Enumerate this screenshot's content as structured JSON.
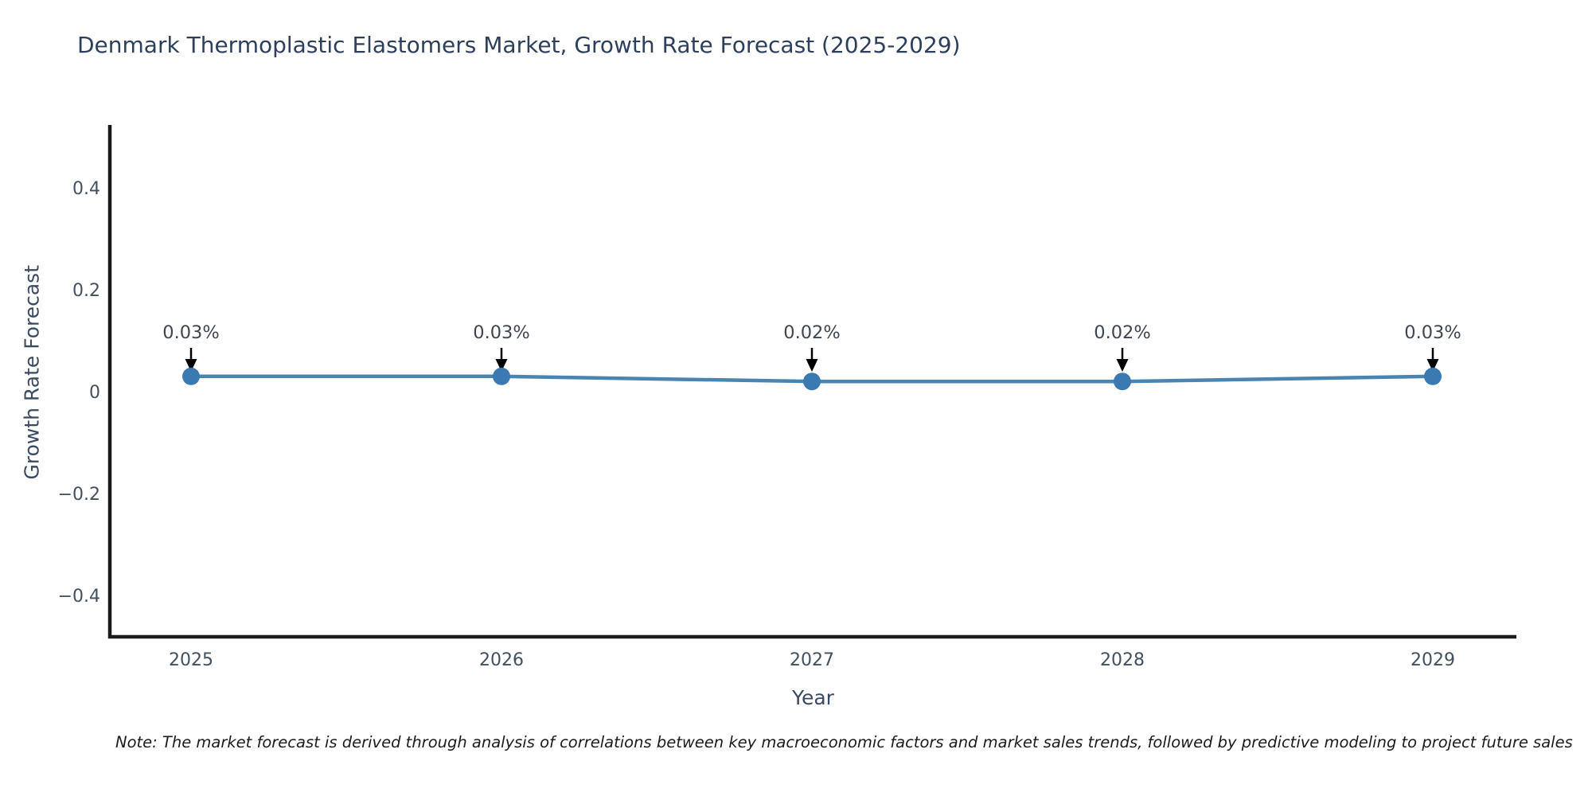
{
  "title": "Denmark Thermoplastic Elastomers Market, Growth Rate Forecast (2025-2029)",
  "footnote": "Note: The market forecast is derived through analysis of correlations between key macroeconomic factors and market sales trends, followed by predictive modeling to project future sales",
  "colors": {
    "background": "#ffffff",
    "title_text": "#2e3f5c",
    "axis_title_text": "#3b4a63",
    "tick_text": "#42505f",
    "spine": "#1a1a1a",
    "line": "#4a84b1",
    "marker": "#3a79b1",
    "annotation_text": "#3f4652",
    "annotation_arrow": "#000000"
  },
  "chart_data": {
    "type": "line",
    "title": "Denmark Thermoplastic Elastomers Market, Growth Rate Forecast (2025-2029)",
    "xlabel": "Year",
    "ylabel": "Growth Rate Forecast",
    "x": [
      2025,
      2026,
      2027,
      2028,
      2029
    ],
    "series": [
      {
        "name": "Growth Rate Forecast",
        "values": [
          0.03,
          0.03,
          0.02,
          0.02,
          0.03
        ],
        "point_labels": [
          "0.03%",
          "0.03%",
          "0.02%",
          "0.02%",
          "0.03%"
        ]
      }
    ],
    "xtick_labels": [
      "2025",
      "2026",
      "2027",
      "2028",
      "2029"
    ],
    "ytick_values": [
      0.4,
      0.2,
      0,
      -0.2,
      -0.4
    ],
    "ytick_labels": [
      "0.4",
      "0.2",
      "0",
      "−0.2",
      "−0.4"
    ],
    "ylim": [
      -0.48,
      0.52
    ],
    "grid": false,
    "legend_position": "none",
    "marker_style": "filled-circle",
    "annotation_style": "value label with downward black arrow above each point"
  }
}
